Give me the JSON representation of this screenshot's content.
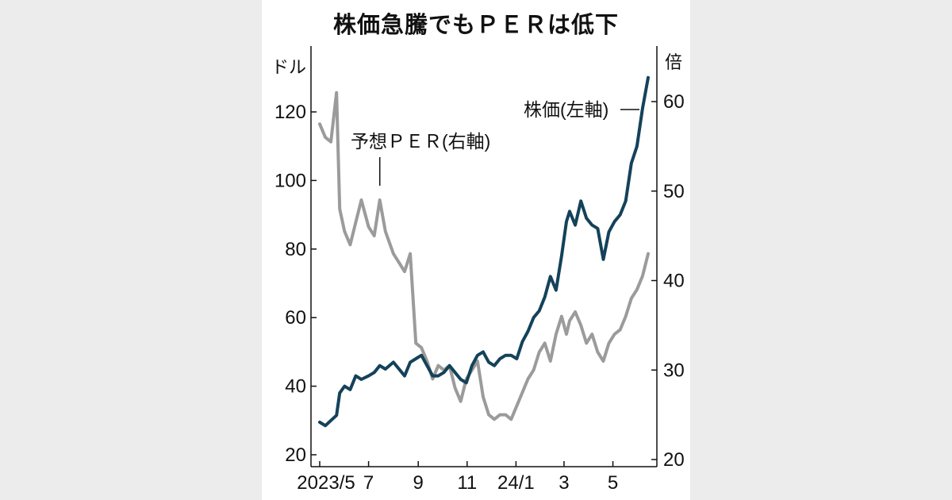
{
  "title": "株価急騰でもＰＥＲは低下",
  "left_unit": "ドル",
  "right_unit": "倍",
  "colors": {
    "price": "#14425a",
    "per": "#9b9b9b",
    "axis": "#111111",
    "background": "#ffffff"
  },
  "chart_data": {
    "type": "line",
    "title": "株価急騰でもＰＥＲは低下",
    "x_tick_labels": [
      "2023/5",
      "7",
      "9",
      "11",
      "24/1",
      "3",
      "5"
    ],
    "x_range": [
      "2023-05",
      "2024-06"
    ],
    "y_left": {
      "unit": "ドル",
      "range": [
        20,
        130
      ],
      "ticks": [
        20,
        40,
        60,
        80,
        100,
        120
      ]
    },
    "y_right": {
      "unit": "倍",
      "range": [
        20,
        62
      ],
      "ticks": [
        20,
        30,
        40,
        50,
        60
      ]
    },
    "grid": false,
    "legend": "none (series labeled directly on chart)",
    "series": [
      {
        "name": "株価(左軸)",
        "axis": "left",
        "color": "#14425a",
        "points": [
          [
            "2023-05-01",
            29.5
          ],
          [
            "2023-05-08",
            28.5
          ],
          [
            "2023-05-15",
            30
          ],
          [
            "2023-05-22",
            31.5
          ],
          [
            "2023-05-26",
            38
          ],
          [
            "2023-06-01",
            40
          ],
          [
            "2023-06-08",
            39
          ],
          [
            "2023-06-15",
            43
          ],
          [
            "2023-06-22",
            42
          ],
          [
            "2023-07-01",
            43
          ],
          [
            "2023-07-08",
            44
          ],
          [
            "2023-07-15",
            46
          ],
          [
            "2023-07-22",
            45
          ],
          [
            "2023-08-01",
            47
          ],
          [
            "2023-08-08",
            45
          ],
          [
            "2023-08-15",
            43
          ],
          [
            "2023-08-22",
            47
          ],
          [
            "2023-08-29",
            48
          ],
          [
            "2023-09-05",
            49
          ],
          [
            "2023-09-12",
            46
          ],
          [
            "2023-09-19",
            43
          ],
          [
            "2023-09-26",
            43
          ],
          [
            "2023-10-03",
            44
          ],
          [
            "2023-10-10",
            46
          ],
          [
            "2023-10-17",
            44
          ],
          [
            "2023-10-24",
            42
          ],
          [
            "2023-10-31",
            41
          ],
          [
            "2023-11-07",
            46
          ],
          [
            "2023-11-14",
            49
          ],
          [
            "2023-11-21",
            50
          ],
          [
            "2023-11-28",
            47
          ],
          [
            "2023-12-05",
            46
          ],
          [
            "2023-12-12",
            48
          ],
          [
            "2023-12-19",
            49
          ],
          [
            "2023-12-26",
            49
          ],
          [
            "2024-01-02",
            48
          ],
          [
            "2024-01-09",
            53
          ],
          [
            "2024-01-16",
            56
          ],
          [
            "2024-01-23",
            60
          ],
          [
            "2024-01-30",
            62
          ],
          [
            "2024-02-06",
            66
          ],
          [
            "2024-02-13",
            72
          ],
          [
            "2024-02-20",
            68
          ],
          [
            "2024-02-27",
            78
          ],
          [
            "2024-03-04",
            88
          ],
          [
            "2024-03-08",
            91
          ],
          [
            "2024-03-15",
            87
          ],
          [
            "2024-03-22",
            94
          ],
          [
            "2024-03-29",
            89
          ],
          [
            "2024-04-05",
            87
          ],
          [
            "2024-04-12",
            86
          ],
          [
            "2024-04-19",
            77
          ],
          [
            "2024-04-26",
            85
          ],
          [
            "2024-05-03",
            88
          ],
          [
            "2024-05-10",
            90
          ],
          [
            "2024-05-17",
            94
          ],
          [
            "2024-05-24",
            105
          ],
          [
            "2024-05-31",
            110
          ],
          [
            "2024-06-07",
            121
          ],
          [
            "2024-06-14",
            130
          ]
        ]
      },
      {
        "name": "予想ＰＥＲ(右軸)",
        "axis": "right",
        "color": "#9b9b9b",
        "points": [
          [
            "2023-05-01",
            57.5
          ],
          [
            "2023-05-08",
            56
          ],
          [
            "2023-05-15",
            55.5
          ],
          [
            "2023-05-22",
            61
          ],
          [
            "2023-05-26",
            48
          ],
          [
            "2023-06-01",
            45.5
          ],
          [
            "2023-06-08",
            44
          ],
          [
            "2023-06-15",
            46.5
          ],
          [
            "2023-06-22",
            49
          ],
          [
            "2023-07-01",
            46
          ],
          [
            "2023-07-08",
            45
          ],
          [
            "2023-07-15",
            49
          ],
          [
            "2023-07-22",
            45.5
          ],
          [
            "2023-08-01",
            43
          ],
          [
            "2023-08-08",
            42
          ],
          [
            "2023-08-15",
            41
          ],
          [
            "2023-08-22",
            43
          ],
          [
            "2023-08-29",
            33
          ],
          [
            "2023-09-05",
            32.5
          ],
          [
            "2023-09-12",
            31
          ],
          [
            "2023-09-19",
            29
          ],
          [
            "2023-09-26",
            30.5
          ],
          [
            "2023-10-03",
            30
          ],
          [
            "2023-10-10",
            30.5
          ],
          [
            "2023-10-17",
            28
          ],
          [
            "2023-10-24",
            26.5
          ],
          [
            "2023-10-31",
            29
          ],
          [
            "2023-11-07",
            30
          ],
          [
            "2023-11-14",
            31
          ],
          [
            "2023-11-21",
            27
          ],
          [
            "2023-11-28",
            25
          ],
          [
            "2023-12-05",
            24.5
          ],
          [
            "2023-12-12",
            25
          ],
          [
            "2023-12-19",
            25
          ],
          [
            "2023-12-26",
            24.5
          ],
          [
            "2024-01-02",
            26
          ],
          [
            "2024-01-09",
            27.5
          ],
          [
            "2024-01-16",
            29
          ],
          [
            "2024-01-23",
            30
          ],
          [
            "2024-01-30",
            32
          ],
          [
            "2024-02-06",
            33
          ],
          [
            "2024-02-13",
            31
          ],
          [
            "2024-02-20",
            34
          ],
          [
            "2024-02-27",
            36
          ],
          [
            "2024-03-04",
            34
          ],
          [
            "2024-03-08",
            35.5
          ],
          [
            "2024-03-15",
            36.5
          ],
          [
            "2024-03-22",
            35
          ],
          [
            "2024-03-29",
            33
          ],
          [
            "2024-04-05",
            34
          ],
          [
            "2024-04-12",
            32
          ],
          [
            "2024-04-19",
            31
          ],
          [
            "2024-04-26",
            33
          ],
          [
            "2024-05-03",
            34
          ],
          [
            "2024-05-10",
            34.5
          ],
          [
            "2024-05-17",
            36
          ],
          [
            "2024-05-24",
            38
          ],
          [
            "2024-05-31",
            39
          ],
          [
            "2024-06-07",
            40.5
          ],
          [
            "2024-06-14",
            43
          ]
        ]
      }
    ],
    "annotations": [
      {
        "text": "予想ＰＥＲ(右軸)",
        "target_series": "予想ＰＥＲ(右軸)",
        "at": "2023-07-15"
      },
      {
        "text": "株価(左軸)",
        "target_series": "株価(左軸)",
        "at": "2024-06-10"
      }
    ]
  }
}
